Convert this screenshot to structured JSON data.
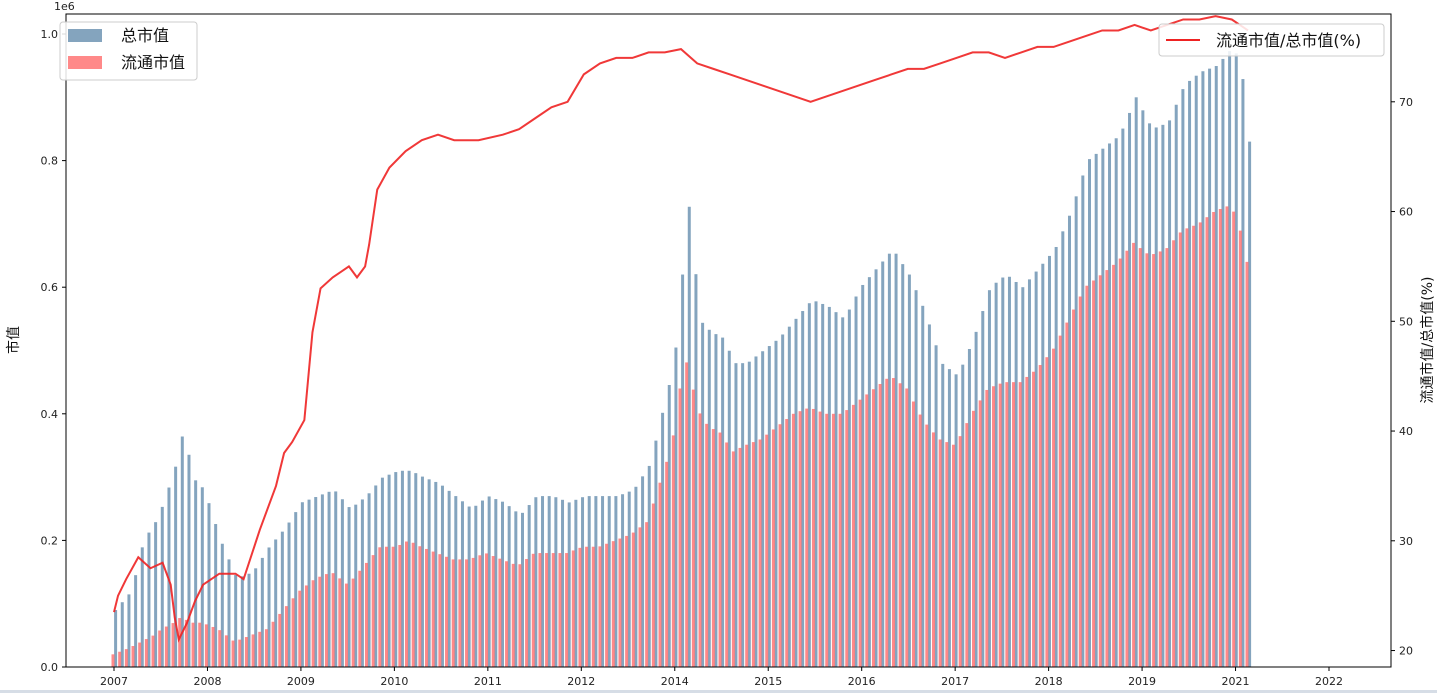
{
  "chart_data": {
    "type": "bar",
    "exponent_label": "1e6",
    "ylabel_left": "市值",
    "ylabel_right": "流通市值/总市值(%)",
    "xlim": [
      2007,
      2022
    ],
    "ylim_left": [
      0,
      1.0
    ],
    "ylim_right": [
      18.5,
      78
    ],
    "x_ticks": [
      "2007",
      "2008",
      "2009",
      "2010",
      "2011",
      "2012",
      "2014",
      "2015",
      "2016",
      "2017",
      "2018",
      "2019",
      "2021",
      "2022"
    ],
    "y_ticks_left": [
      "0.0",
      "0.2",
      "0.4",
      "0.6",
      "0.8",
      "1.0"
    ],
    "y_ticks_right": [
      "20",
      "30",
      "40",
      "50",
      "60",
      "70"
    ],
    "legend_left": {
      "placement": "top-left",
      "entries": [
        "总市值",
        "流通市值"
      ]
    },
    "legend_right": {
      "placement": "top-right",
      "entries": [
        "流通市值/总市值(%)"
      ]
    },
    "colors": {
      "total": "#5b86a8",
      "float": "#ff6b6b",
      "ratio": "#ee2222"
    },
    "series": [
      {
        "name": "总市值",
        "unit_scale": "1e6",
        "points": [
          [
            2007.0,
            0.09
          ],
          [
            2007.2,
            0.12
          ],
          [
            2007.35,
            0.2
          ],
          [
            2007.5,
            0.23
          ],
          [
            2007.6,
            0.26
          ],
          [
            2007.75,
            0.32
          ],
          [
            2007.85,
            0.38
          ],
          [
            2007.95,
            0.3
          ],
          [
            2008.1,
            0.28
          ],
          [
            2008.3,
            0.2
          ],
          [
            2008.5,
            0.14
          ],
          [
            2008.7,
            0.15
          ],
          [
            2008.9,
            0.19
          ],
          [
            2009.1,
            0.22
          ],
          [
            2009.3,
            0.26
          ],
          [
            2009.5,
            0.27
          ],
          [
            2009.7,
            0.28
          ],
          [
            2009.9,
            0.25
          ],
          [
            2010.1,
            0.27
          ],
          [
            2010.3,
            0.3
          ],
          [
            2010.5,
            0.31
          ],
          [
            2010.65,
            0.31
          ],
          [
            2010.8,
            0.3
          ],
          [
            2011.0,
            0.29
          ],
          [
            2011.2,
            0.27
          ],
          [
            2011.4,
            0.25
          ],
          [
            2011.6,
            0.27
          ],
          [
            2011.8,
            0.26
          ],
          [
            2012.0,
            0.24
          ],
          [
            2012.2,
            0.27
          ],
          [
            2012.4,
            0.27
          ],
          [
            2012.6,
            0.26
          ],
          [
            2012.8,
            0.27
          ],
          [
            2013.0,
            0.27
          ],
          [
            2013.2,
            0.27
          ],
          [
            2013.4,
            0.28
          ],
          [
            2013.6,
            0.32
          ],
          [
            2013.75,
            0.4
          ],
          [
            2013.9,
            0.48
          ],
          [
            2014.0,
            0.62
          ],
          [
            2014.1,
            0.75
          ],
          [
            2014.2,
            0.55
          ],
          [
            2014.35,
            0.53
          ],
          [
            2014.5,
            0.52
          ],
          [
            2014.65,
            0.48
          ],
          [
            2014.8,
            0.48
          ],
          [
            2015.0,
            0.5
          ],
          [
            2015.2,
            0.52
          ],
          [
            2015.4,
            0.55
          ],
          [
            2015.6,
            0.58
          ],
          [
            2015.8,
            0.57
          ],
          [
            2016.0,
            0.55
          ],
          [
            2016.2,
            0.6
          ],
          [
            2016.4,
            0.63
          ],
          [
            2016.6,
            0.66
          ],
          [
            2016.8,
            0.62
          ],
          [
            2017.0,
            0.56
          ],
          [
            2017.2,
            0.48
          ],
          [
            2017.4,
            0.46
          ],
          [
            2017.6,
            0.52
          ],
          [
            2017.8,
            0.6
          ],
          [
            2018.0,
            0.62
          ],
          [
            2018.2,
            0.6
          ],
          [
            2018.4,
            0.63
          ],
          [
            2018.6,
            0.66
          ],
          [
            2018.8,
            0.72
          ],
          [
            2019.0,
            0.8
          ],
          [
            2019.2,
            0.82
          ],
          [
            2019.4,
            0.84
          ],
          [
            2019.6,
            0.9
          ],
          [
            2019.8,
            0.85
          ],
          [
            2020.0,
            0.86
          ],
          [
            2020.2,
            0.92
          ],
          [
            2020.4,
            0.94
          ],
          [
            2020.6,
            0.95
          ],
          [
            2020.8,
            0.98
          ],
          [
            2020.9,
            0.95
          ],
          [
            2021.0,
            0.83
          ]
        ]
      },
      {
        "name": "流通市值",
        "unit_scale": "1e6",
        "points": [
          [
            2007.0,
            0.02
          ],
          [
            2007.2,
            0.03
          ],
          [
            2007.35,
            0.04
          ],
          [
            2007.5,
            0.05
          ],
          [
            2007.6,
            0.06
          ],
          [
            2007.75,
            0.07
          ],
          [
            2007.85,
            0.08
          ],
          [
            2007.95,
            0.07
          ],
          [
            2008.1,
            0.07
          ],
          [
            2008.3,
            0.06
          ],
          [
            2008.5,
            0.04
          ],
          [
            2008.7,
            0.05
          ],
          [
            2008.9,
            0.06
          ],
          [
            2009.1,
            0.09
          ],
          [
            2009.3,
            0.12
          ],
          [
            2009.5,
            0.14
          ],
          [
            2009.7,
            0.15
          ],
          [
            2009.9,
            0.13
          ],
          [
            2010.1,
            0.16
          ],
          [
            2010.3,
            0.19
          ],
          [
            2010.5,
            0.19
          ],
          [
            2010.65,
            0.2
          ],
          [
            2010.8,
            0.19
          ],
          [
            2011.0,
            0.18
          ],
          [
            2011.2,
            0.17
          ],
          [
            2011.4,
            0.17
          ],
          [
            2011.6,
            0.18
          ],
          [
            2011.8,
            0.17
          ],
          [
            2012.0,
            0.16
          ],
          [
            2012.2,
            0.18
          ],
          [
            2012.4,
            0.18
          ],
          [
            2012.6,
            0.18
          ],
          [
            2012.8,
            0.19
          ],
          [
            2013.0,
            0.19
          ],
          [
            2013.2,
            0.2
          ],
          [
            2013.4,
            0.21
          ],
          [
            2013.6,
            0.23
          ],
          [
            2013.75,
            0.29
          ],
          [
            2013.9,
            0.35
          ],
          [
            2014.0,
            0.44
          ],
          [
            2014.1,
            0.49
          ],
          [
            2014.2,
            0.41
          ],
          [
            2014.35,
            0.38
          ],
          [
            2014.5,
            0.37
          ],
          [
            2014.65,
            0.34
          ],
          [
            2014.8,
            0.35
          ],
          [
            2015.0,
            0.36
          ],
          [
            2015.2,
            0.38
          ],
          [
            2015.4,
            0.4
          ],
          [
            2015.6,
            0.41
          ],
          [
            2015.8,
            0.4
          ],
          [
            2016.0,
            0.4
          ],
          [
            2016.2,
            0.42
          ],
          [
            2016.4,
            0.44
          ],
          [
            2016.6,
            0.46
          ],
          [
            2016.8,
            0.44
          ],
          [
            2017.0,
            0.39
          ],
          [
            2017.2,
            0.36
          ],
          [
            2017.4,
            0.35
          ],
          [
            2017.6,
            0.4
          ],
          [
            2017.8,
            0.44
          ],
          [
            2018.0,
            0.45
          ],
          [
            2018.2,
            0.45
          ],
          [
            2018.4,
            0.47
          ],
          [
            2018.6,
            0.5
          ],
          [
            2018.8,
            0.55
          ],
          [
            2019.0,
            0.6
          ],
          [
            2019.2,
            0.62
          ],
          [
            2019.4,
            0.64
          ],
          [
            2019.6,
            0.67
          ],
          [
            2019.8,
            0.65
          ],
          [
            2020.0,
            0.66
          ],
          [
            2020.2,
            0.69
          ],
          [
            2020.4,
            0.7
          ],
          [
            2020.6,
            0.72
          ],
          [
            2020.8,
            0.73
          ],
          [
            2020.9,
            0.7
          ],
          [
            2021.0,
            0.64
          ]
        ]
      },
      {
        "name": "流通市值/总市值(%)",
        "points": [
          [
            2007.0,
            23.5
          ],
          [
            2007.05,
            25.0
          ],
          [
            2007.15,
            26.5
          ],
          [
            2007.3,
            28.5
          ],
          [
            2007.45,
            27.5
          ],
          [
            2007.6,
            28.0
          ],
          [
            2007.7,
            26.0
          ],
          [
            2007.75,
            23.0
          ],
          [
            2007.8,
            21.0
          ],
          [
            2007.9,
            22.5
          ],
          [
            2008.0,
            24.5
          ],
          [
            2008.1,
            26.0
          ],
          [
            2008.3,
            27.0
          ],
          [
            2008.5,
            27.0
          ],
          [
            2008.6,
            26.5
          ],
          [
            2008.8,
            31.0
          ],
          [
            2009.0,
            35.0
          ],
          [
            2009.1,
            38.0
          ],
          [
            2009.2,
            39.0
          ],
          [
            2009.35,
            41.0
          ],
          [
            2009.45,
            49.0
          ],
          [
            2009.55,
            53.0
          ],
          [
            2009.7,
            54.0
          ],
          [
            2009.8,
            54.5
          ],
          [
            2009.9,
            55.0
          ],
          [
            2010.0,
            54.0
          ],
          [
            2010.1,
            55.0
          ],
          [
            2010.15,
            57.0
          ],
          [
            2010.25,
            62.0
          ],
          [
            2010.4,
            64.0
          ],
          [
            2010.6,
            65.5
          ],
          [
            2010.8,
            66.5
          ],
          [
            2011.0,
            67.0
          ],
          [
            2011.2,
            66.5
          ],
          [
            2011.5,
            66.5
          ],
          [
            2011.8,
            67.0
          ],
          [
            2012.0,
            67.5
          ],
          [
            2012.2,
            68.5
          ],
          [
            2012.4,
            69.5
          ],
          [
            2012.6,
            70.0
          ],
          [
            2012.8,
            72.5
          ],
          [
            2013.0,
            73.5
          ],
          [
            2013.2,
            74.0
          ],
          [
            2013.4,
            74.0
          ],
          [
            2013.6,
            74.5
          ],
          [
            2013.8,
            74.5
          ],
          [
            2014.0,
            74.8
          ],
          [
            2014.2,
            73.5
          ],
          [
            2014.4,
            73.0
          ],
          [
            2014.6,
            72.5
          ],
          [
            2014.8,
            72.0
          ],
          [
            2015.0,
            71.5
          ],
          [
            2015.2,
            71.0
          ],
          [
            2015.4,
            70.5
          ],
          [
            2015.6,
            70.0
          ],
          [
            2015.8,
            70.5
          ],
          [
            2016.0,
            71.0
          ],
          [
            2016.2,
            71.5
          ],
          [
            2016.4,
            72.0
          ],
          [
            2016.6,
            72.5
          ],
          [
            2016.8,
            73.0
          ],
          [
            2017.0,
            73.0
          ],
          [
            2017.2,
            73.5
          ],
          [
            2017.4,
            74.0
          ],
          [
            2017.6,
            74.5
          ],
          [
            2017.8,
            74.5
          ],
          [
            2018.0,
            74.0
          ],
          [
            2018.2,
            74.5
          ],
          [
            2018.4,
            75.0
          ],
          [
            2018.6,
            75.0
          ],
          [
            2018.8,
            75.5
          ],
          [
            2019.0,
            76.0
          ],
          [
            2019.2,
            76.5
          ],
          [
            2019.4,
            76.5
          ],
          [
            2019.6,
            77.0
          ],
          [
            2019.8,
            76.5
          ],
          [
            2020.0,
            77.0
          ],
          [
            2020.2,
            77.5
          ],
          [
            2020.4,
            77.5
          ],
          [
            2020.6,
            77.8
          ],
          [
            2020.8,
            77.5
          ],
          [
            2020.9,
            77.0
          ],
          [
            2021.0,
            76.5
          ]
        ]
      }
    ]
  }
}
